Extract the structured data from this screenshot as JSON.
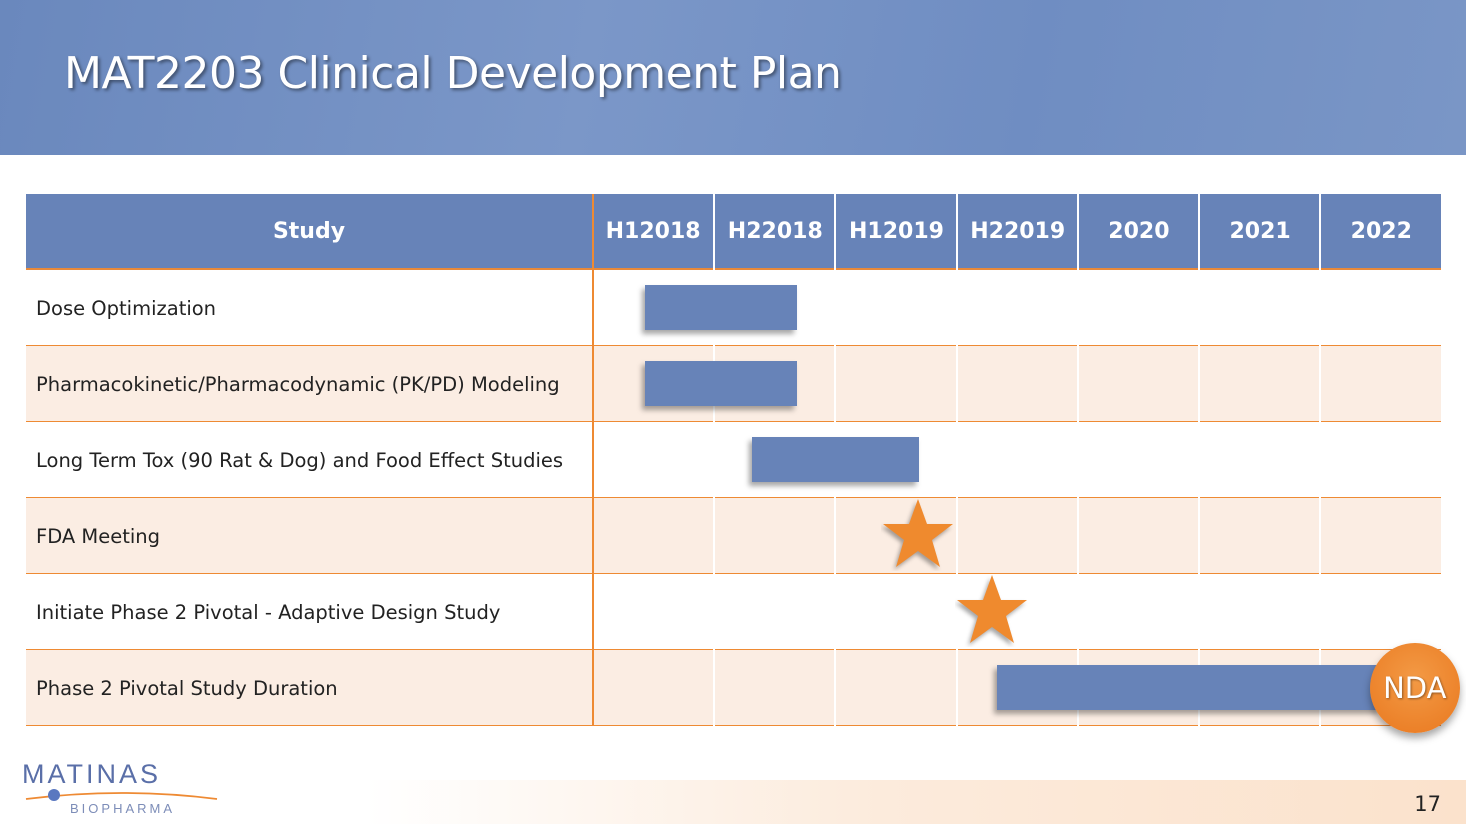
{
  "header": {
    "title": "MAT2203 Clinical Development Plan"
  },
  "logo": {
    "name": "MATINAS",
    "sub": "BIOPHARMA"
  },
  "page_number": "17",
  "colors": {
    "bar": "#6783b8",
    "accent": "#ee8a33",
    "header": "#6783b8",
    "row_alt": "#fbede3"
  },
  "chart_data": {
    "type": "gantt",
    "title": "MAT2203 Clinical Development Plan",
    "study_header": "Study",
    "periods": [
      {
        "l1": "H1",
        "l2": "2018"
      },
      {
        "l1": "H2",
        "l2": "2018"
      },
      {
        "l1": "H1",
        "l2": "2019"
      },
      {
        "l1": "H2",
        "l2": "2019"
      },
      {
        "l1": "",
        "l2": "2020"
      },
      {
        "l1": "",
        "l2": "2021"
      },
      {
        "l1": "",
        "l2": "2022"
      }
    ],
    "unit_note": "start/end measured in period-column index (0 = start of H1 2018)",
    "tasks": [
      {
        "name": "Dose Optimization",
        "type": "bar",
        "start": 0.43,
        "end": 1.68
      },
      {
        "name": "Pharmacokinetic/Pharmacodynamic (PK/PD) Modeling",
        "type": "bar",
        "start": 0.43,
        "end": 1.68
      },
      {
        "name": "Long Term Tox (90 Rat & Dog) and Food Effect Studies",
        "type": "bar",
        "start": 1.31,
        "end": 2.69
      },
      {
        "name": "FDA Meeting",
        "type": "milestone",
        "at": 2.68
      },
      {
        "name": "Initiate Phase 2 Pivotal - Adaptive Design Study",
        "type": "milestone",
        "at": 3.29
      },
      {
        "name": "Phase 2 Pivotal Study Duration",
        "type": "bar",
        "start": 3.33,
        "end": 6.5,
        "end_marker": "NDA"
      }
    ]
  }
}
